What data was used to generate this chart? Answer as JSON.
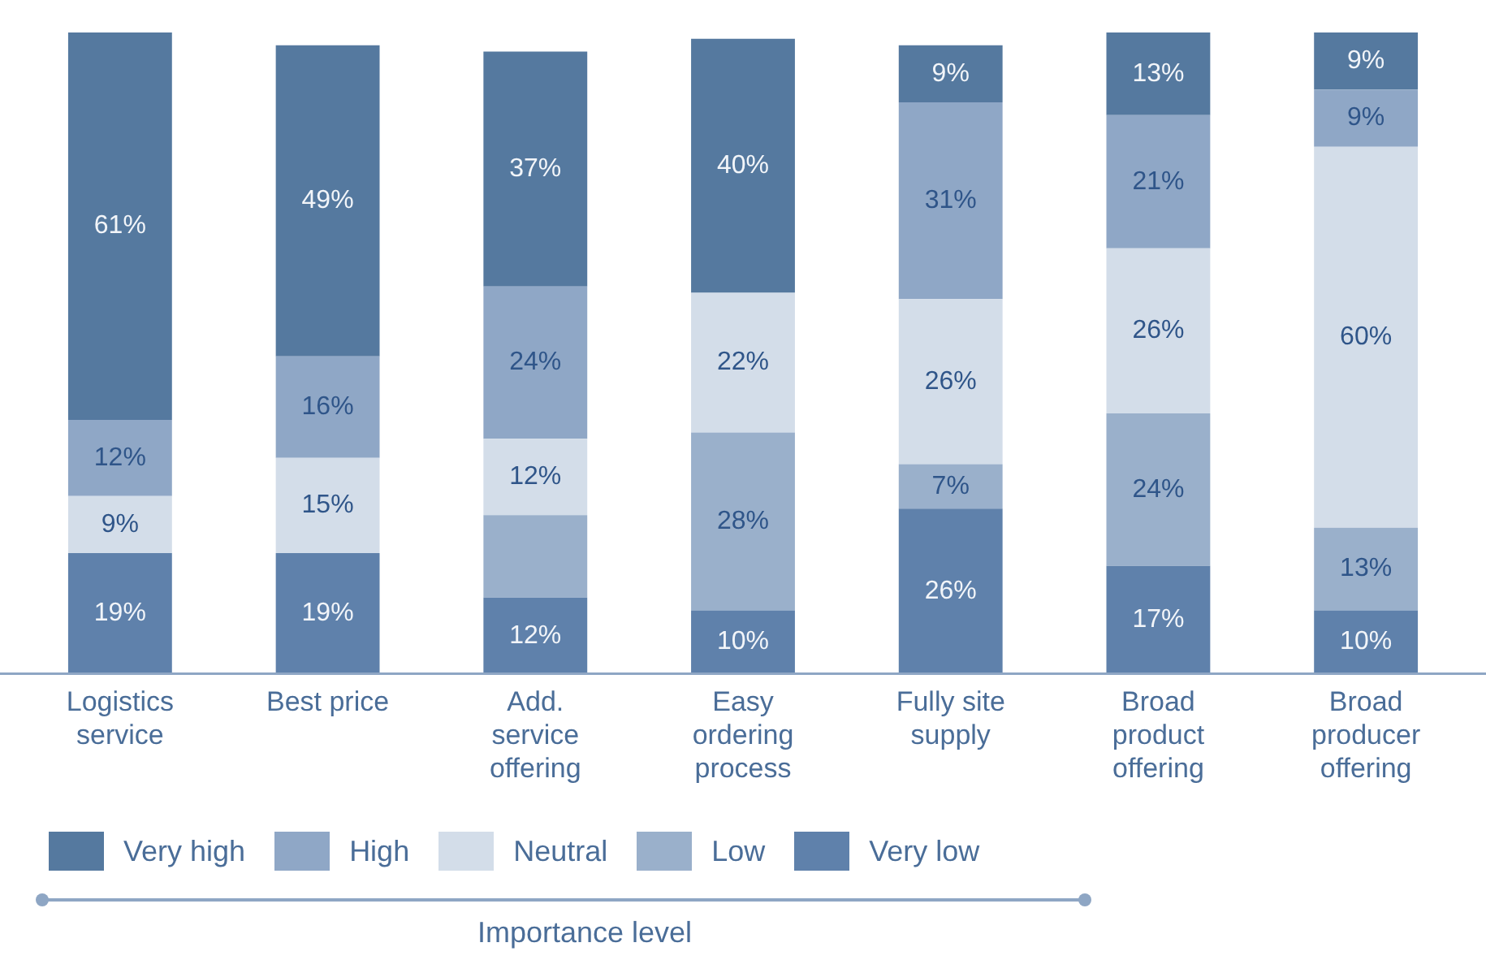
{
  "chart_data": {
    "type": "bar",
    "stacked": true,
    "categories": [
      "Logistics service",
      "Best price",
      "Add. service offering",
      "Easy ordering process",
      "Fully site supply",
      "Broad product offering",
      "Broad producer offering"
    ],
    "series": [
      {
        "name": "Very low",
        "color": "#5f81ab",
        "values": [
          19,
          19,
          12,
          10,
          26,
          17,
          10
        ],
        "value_labels": [
          "19%",
          "19%",
          "12%",
          "10%",
          "26%",
          "17%",
          "10%"
        ]
      },
      {
        "name": "Low",
        "color": "#9ab0cb",
        "values": [
          0,
          0,
          13,
          28,
          7,
          24,
          13
        ],
        "value_labels": [
          null,
          null,
          null,
          "28%",
          "7%",
          "24%",
          "13%"
        ]
      },
      {
        "name": "Neutral",
        "color": "#d3dde9",
        "values": [
          9,
          15,
          12,
          22,
          26,
          26,
          60
        ],
        "value_labels": [
          "9%",
          "15%",
          "12%",
          "22%",
          "26%",
          "26%",
          "60%"
        ]
      },
      {
        "name": "High",
        "color": "#8fa7c6",
        "values": [
          12,
          16,
          24,
          0,
          31,
          21,
          9
        ],
        "value_labels": [
          "12%",
          "16%",
          "24%",
          null,
          "31%",
          "21%",
          "9%"
        ]
      },
      {
        "name": "Very high",
        "color": "#55799f",
        "values": [
          61,
          49,
          37,
          40,
          9,
          13,
          9
        ],
        "value_labels": [
          "61%",
          "49%",
          "37%",
          "40%",
          "9%",
          "13%",
          "9%"
        ]
      }
    ],
    "ylim": [
      0,
      101
    ],
    "tick_labels": "x",
    "grid": false,
    "legend": "bottom",
    "legend_title": "Importance level"
  }
}
